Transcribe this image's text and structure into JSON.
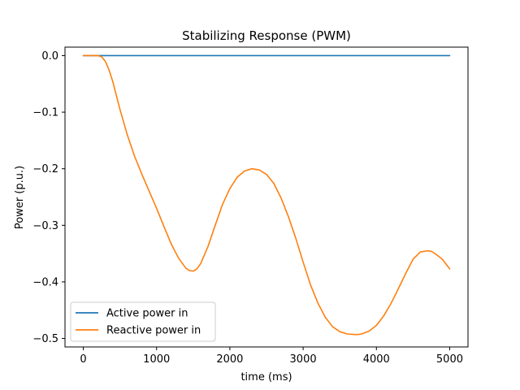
{
  "chart_data": {
    "type": "line",
    "title": "Stabilizing Response (PWM)",
    "xlabel": "time (ms)",
    "ylabel": "Power (p.u.)",
    "xlim": [
      -250,
      5250
    ],
    "ylim": [
      -0.515,
      0.015
    ],
    "xticks": [
      0,
      1000,
      2000,
      3000,
      4000,
      5000
    ],
    "xtick_labels": [
      "0",
      "1000",
      "2000",
      "3000",
      "4000",
      "5000"
    ],
    "yticks": [
      0.0,
      -0.1,
      -0.2,
      -0.3,
      -0.4,
      -0.5
    ],
    "ytick_labels": [
      "0.0",
      "−0.1",
      "−0.2",
      "−0.3",
      "−0.4",
      "−0.5"
    ],
    "grid": false,
    "legend": "lower-left",
    "series": [
      {
        "name": "Active power in",
        "color": "#1f77b4",
        "x": [
          0,
          5000
        ],
        "y": [
          0.0,
          0.0
        ]
      },
      {
        "name": "Reactive power in",
        "color": "#ff7f0e",
        "x": [
          0,
          200,
          250,
          300,
          350,
          400,
          450,
          500,
          600,
          700,
          800,
          900,
          1000,
          1100,
          1200,
          1300,
          1400,
          1450,
          1500,
          1550,
          1600,
          1700,
          1800,
          1900,
          2000,
          2100,
          2200,
          2300,
          2400,
          2500,
          2600,
          2700,
          2800,
          2900,
          3000,
          3100,
          3200,
          3300,
          3400,
          3500,
          3600,
          3700,
          3750,
          3800,
          3900,
          4000,
          4100,
          4200,
          4300,
          4400,
          4500,
          4600,
          4700,
          4750,
          4800,
          4900,
          5000
        ],
        "y": [
          0.0,
          0.0,
          -0.002,
          -0.01,
          -0.025,
          -0.045,
          -0.07,
          -0.095,
          -0.14,
          -0.178,
          -0.21,
          -0.24,
          -0.27,
          -0.302,
          -0.333,
          -0.358,
          -0.376,
          -0.38,
          -0.381,
          -0.377,
          -0.368,
          -0.338,
          -0.3,
          -0.263,
          -0.235,
          -0.215,
          -0.204,
          -0.2,
          -0.202,
          -0.21,
          -0.226,
          -0.252,
          -0.285,
          -0.323,
          -0.365,
          -0.405,
          -0.437,
          -0.462,
          -0.479,
          -0.488,
          -0.492,
          -0.493,
          -0.493,
          -0.492,
          -0.487,
          -0.477,
          -0.46,
          -0.438,
          -0.412,
          -0.385,
          -0.36,
          -0.347,
          -0.345,
          -0.346,
          -0.35,
          -0.36,
          -0.377
        ]
      }
    ]
  }
}
